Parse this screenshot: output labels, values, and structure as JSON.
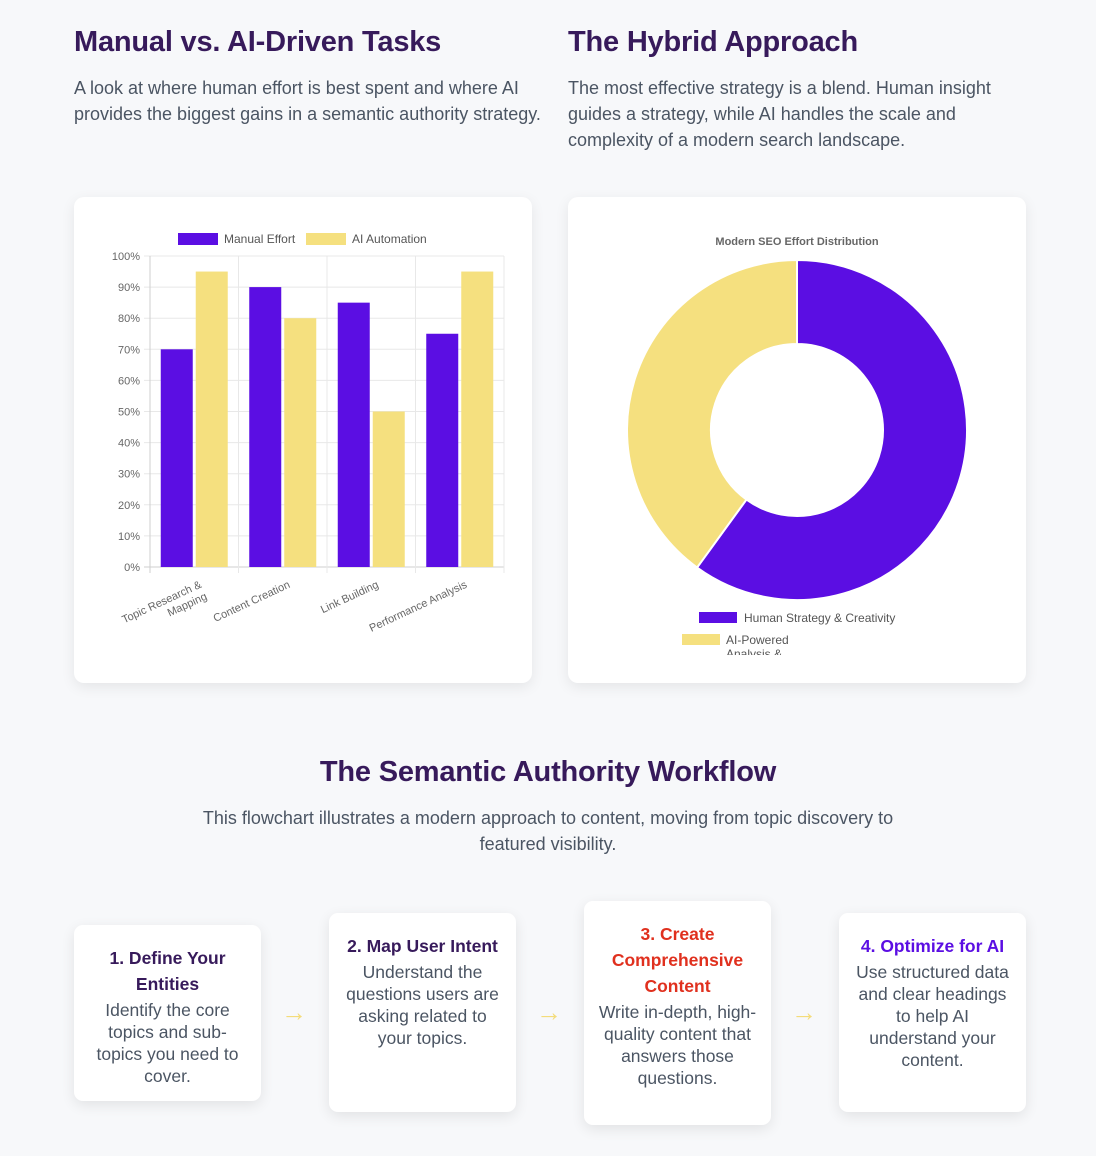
{
  "left_section": {
    "title": "Manual vs. AI-Driven Tasks",
    "description": "A look at where human effort is best spent and where AI provides the biggest gains in a semantic authority strategy."
  },
  "right_section": {
    "title": "The Hybrid Approach",
    "description": "The most effective strategy is a blend. Human insight guides a strategy, while AI handles the scale and complexity of a modern search landscape."
  },
  "chart_data": [
    {
      "type": "bar",
      "categories": [
        "Topic Research & Mapping",
        "Content Creation",
        "Link Building",
        "Performance Analysis"
      ],
      "series": [
        {
          "name": "Manual Effort",
          "values": [
            70,
            90,
            85,
            75
          ],
          "color": "#5b0ee3"
        },
        {
          "name": "AI Automation",
          "values": [
            95,
            80,
            50,
            95
          ],
          "color": "#f5e07f"
        }
      ],
      "ylim": [
        0,
        100
      ],
      "yticks": [
        "0%",
        "10%",
        "20%",
        "30%",
        "40%",
        "50%",
        "60%",
        "70%",
        "80%",
        "90%",
        "100%"
      ],
      "grid": true,
      "legend": "top"
    },
    {
      "type": "pie",
      "title": "Modern SEO Effort Distribution",
      "labels": [
        "Human Strategy & Creativity",
        "AI-Powered Analysis &"
      ],
      "values": [
        60,
        40
      ],
      "colors": [
        "#5b0ee3",
        "#f5e07f"
      ],
      "legend": "bottom"
    }
  ],
  "workflow": {
    "title": "The Semantic Authority Workflow",
    "description": "This flowchart illustrates a modern approach to content, moving from topic discovery to featured visibility.",
    "arrow": "→",
    "steps": [
      {
        "title": "1. Define Your Entities",
        "desc": "Identify the core topics and sub-topics you need to cover.",
        "color": "#371a5b"
      },
      {
        "title": "2. Map User Intent",
        "desc": "Understand the questions users are asking related to your topics.",
        "color": "#371a5b"
      },
      {
        "title": "3. Create Comprehensive Content",
        "desc": "Write in-depth, high-quality content that answers those questions.",
        "color": "#e0301e"
      },
      {
        "title": "4. Optimize for AI",
        "desc": "Use structured data and clear headings to help AI understand your content.",
        "color": "#5b0ee3"
      }
    ]
  }
}
